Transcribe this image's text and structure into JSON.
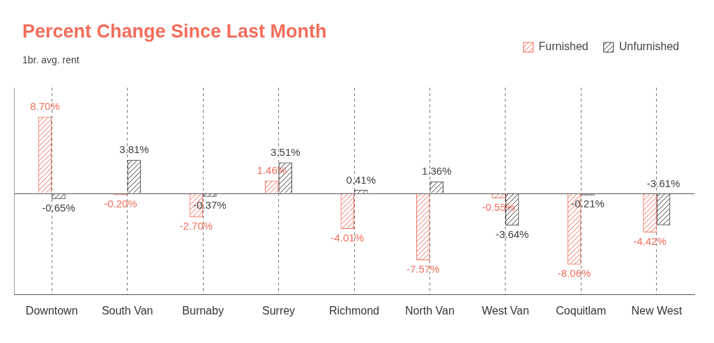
{
  "chart_data": {
    "type": "bar",
    "title": "Percent Change Since Last Month",
    "subtitle": "1br. avg. rent",
    "categories": [
      "Downtown",
      "South Van",
      "Burnaby",
      "Surrey",
      "Richmond",
      "North Van",
      "West Van",
      "Coquitlam",
      "New West"
    ],
    "series": [
      {
        "name": "Furnished",
        "color": "#f26d5b",
        "values": [
          8.7,
          -0.2,
          -2.7,
          1.46,
          -4.01,
          -7.57,
          -0.55,
          -8.06,
          -4.42
        ],
        "value_labels": [
          "8.70%",
          "-0.20%",
          "-2.70%",
          "1.46%",
          "-4.01%",
          "-7.57%",
          "-0.55%",
          "-8.06%",
          "-4.42%"
        ]
      },
      {
        "name": "Unfurnished",
        "color": "#3d3d3d",
        "values": [
          -0.65,
          3.81,
          -0.37,
          3.51,
          0.41,
          1.36,
          -3.64,
          -0.21,
          -3.61
        ],
        "value_labels": [
          "-0.65%",
          "3.81%",
          "-0.37%",
          "3.51%",
          "0.41%",
          "1.36%",
          "-3.64%",
          "-0.21%",
          "-3.61%"
        ]
      }
    ],
    "ylim": [
      -11.5,
      12
    ],
    "yticks": [
      0
    ],
    "grid": true,
    "legend": "top-right",
    "data_labels": true,
    "tick_labels": "x"
  }
}
